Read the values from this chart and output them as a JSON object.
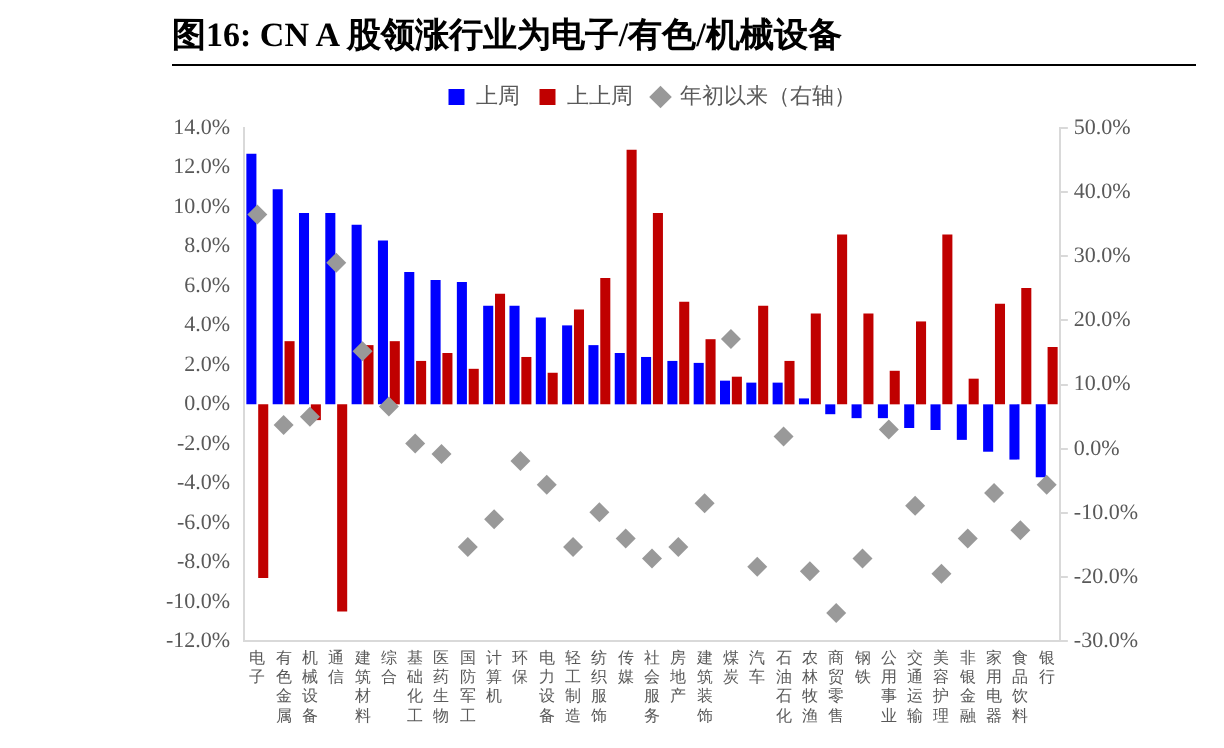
{
  "chart_data": {
    "type": "bar",
    "title": "图16:  CN A 股领涨行业为电子/有色/机械设备",
    "categories": [
      "电子",
      "有色金属",
      "机械设备",
      "通信",
      "建筑材料",
      "综合",
      "基础化工",
      "医药生物",
      "国防军工",
      "计算机",
      "环保",
      "电力设备",
      "轻工制造",
      "纺织服饰",
      "传媒",
      "社会服务",
      "房地产",
      "建筑装饰",
      "煤炭",
      "汽车",
      "石油石化",
      "农林牧渔",
      "商贸零售",
      "钢铁",
      "公用事业",
      "交通运输",
      "美容护理",
      "非银金融",
      "家用电器",
      "食品饮料",
      "银行"
    ],
    "series": [
      {
        "name": "上周",
        "color": "#0000ff",
        "values": [
          12.7,
          10.9,
          9.7,
          9.7,
          9.1,
          8.3,
          6.7,
          6.3,
          6.2,
          5.0,
          5.0,
          4.4,
          4.0,
          3.0,
          2.6,
          2.4,
          2.2,
          2.1,
          1.2,
          1.1,
          1.1,
          0.3,
          -0.5,
          -0.7,
          -0.7,
          -1.2,
          -1.3,
          -1.8,
          -2.4,
          -2.8,
          -3.7
        ]
      },
      {
        "name": "上上周",
        "color": "#c00000",
        "values": [
          -8.8,
          3.2,
          -0.8,
          -10.5,
          3.0,
          3.2,
          2.2,
          2.6,
          1.8,
          5.6,
          2.4,
          1.6,
          4.8,
          6.4,
          12.9,
          9.7,
          5.2,
          3.3,
          1.4,
          5.0,
          2.2,
          4.6,
          8.6,
          4.6,
          1.7,
          4.2,
          8.6,
          1.3,
          5.1,
          5.9,
          2.9
        ]
      },
      {
        "name": "年初以来（右轴）",
        "type": "scatter",
        "axis": "y2",
        "color": "#999999",
        "marker": "diamond",
        "x": [
          "电子",
          "有色金属",
          "机械设备",
          "通信",
          "建筑材料",
          "综合",
          "基础化工",
          "医药生物",
          "国防军工",
          "计算机",
          "环保",
          "电力设备",
          "轻工制造",
          "纺织服饰",
          "传媒",
          "社会服务",
          "房地产",
          "建筑装饰",
          "煤炭",
          "汽车",
          "石油石化",
          "农林牧渔",
          "商贸零售",
          "钢铁",
          "公用事业",
          "交通运输",
          "美容护理",
          "非银金融",
          "家用电器",
          "食品饮料",
          "银行"
        ],
        "values": [
          36.5,
          3.7,
          5.0,
          29.0,
          15.2,
          6.6,
          0.8,
          -0.8,
          -15.3,
          -11.0,
          -1.9,
          -5.6,
          -15.3,
          -9.9,
          -14.0,
          -17.1,
          -15.3,
          -8.5,
          17.1,
          -18.4,
          1.9,
          -19.1,
          -25.6,
          -17.1,
          3.0,
          -8.9,
          -19.5,
          -14.0,
          -6.9,
          -12.7,
          -5.6
        ]
      }
    ],
    "ylim": [
      -12,
      14
    ],
    "yticks": [
      {
        "value": -12,
        "label": "-12.0%"
      },
      {
        "value": -10,
        "label": "-10.0%"
      },
      {
        "value": -8,
        "label": "-8.0%"
      },
      {
        "value": -6,
        "label": "-6.0%"
      },
      {
        "value": -4,
        "label": "-4.0%"
      },
      {
        "value": -2,
        "label": "-2.0%"
      },
      {
        "value": 0,
        "label": "0.0%"
      },
      {
        "value": 2,
        "label": "2.0%"
      },
      {
        "value": 4,
        "label": "4.0%"
      },
      {
        "value": 6,
        "label": "6.0%"
      },
      {
        "value": 8,
        "label": "8.0%"
      },
      {
        "value": 10,
        "label": "10.0%"
      },
      {
        "value": 12,
        "label": "12.0%"
      },
      {
        "value": 14,
        "label": "14.0%"
      }
    ],
    "y2lim": [
      -30,
      50
    ],
    "y2ticks": [
      {
        "value": -30,
        "label": "-30.0%"
      },
      {
        "value": -20,
        "label": "-20.0%"
      },
      {
        "value": -10,
        "label": "-10.0%"
      },
      {
        "value": 0,
        "label": "0.0%"
      },
      {
        "value": 10,
        "label": "10.0%"
      },
      {
        "value": 20,
        "label": "20.0%"
      },
      {
        "value": 30,
        "label": "30.0%"
      },
      {
        "value": 40,
        "label": "40.0%"
      },
      {
        "value": 50,
        "label": "50.0%"
      }
    ],
    "grid": false,
    "legend": "top"
  }
}
